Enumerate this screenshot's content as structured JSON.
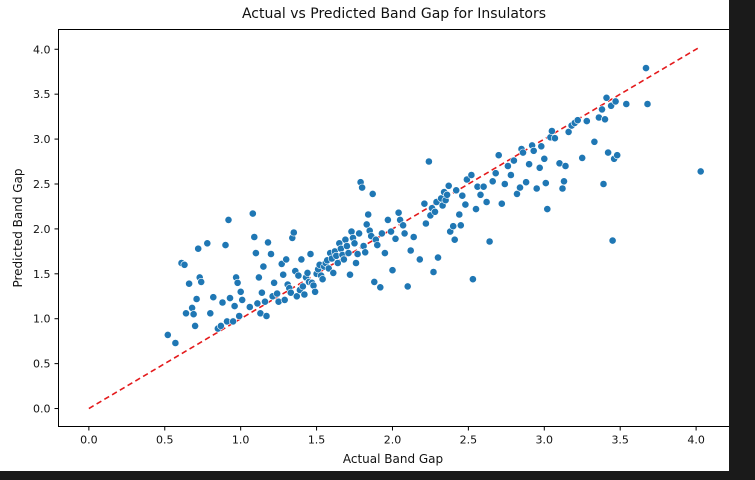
{
  "chart_data": {
    "type": "scatter",
    "title": "Actual vs Predicted Band Gap for Insulators",
    "xlabel": "Actual Band Gap",
    "ylabel": "Predicted Band Gap",
    "xlim": [
      -0.2,
      4.22
    ],
    "ylim": [
      -0.2,
      4.22
    ],
    "xticks": [
      "0.0",
      "0.5",
      "1.0",
      "1.5",
      "2.0",
      "2.5",
      "3.0",
      "3.5",
      "4.0"
    ],
    "yticks": [
      "0.0",
      "0.5",
      "1.0",
      "1.5",
      "2.0",
      "2.5",
      "3.0",
      "3.5",
      "4.0"
    ],
    "grid": false,
    "legend": "none",
    "point_color": "#1f77b4",
    "reference_line": {
      "from": [
        0,
        0
      ],
      "to": [
        4.03,
        4.03
      ],
      "color": "#e41a1c",
      "style": "dashed"
    },
    "points": [
      [
        0.52,
        0.82
      ],
      [
        0.57,
        0.73
      ],
      [
        0.61,
        1.62
      ],
      [
        0.63,
        1.6
      ],
      [
        0.64,
        1.06
      ],
      [
        0.66,
        1.39
      ],
      [
        0.68,
        1.12
      ],
      [
        0.69,
        1.05
      ],
      [
        0.7,
        0.92
      ],
      [
        0.71,
        1.22
      ],
      [
        0.72,
        1.78
      ],
      [
        0.73,
        1.46
      ],
      [
        0.74,
        1.41
      ],
      [
        0.78,
        1.84
      ],
      [
        0.8,
        1.06
      ],
      [
        0.82,
        1.24
      ],
      [
        0.85,
        0.89
      ],
      [
        0.87,
        0.92
      ],
      [
        0.88,
        1.18
      ],
      [
        0.9,
        1.82
      ],
      [
        0.91,
        0.97
      ],
      [
        0.92,
        2.1
      ],
      [
        0.93,
        1.23
      ],
      [
        0.95,
        0.97
      ],
      [
        0.96,
        1.14
      ],
      [
        0.97,
        1.46
      ],
      [
        0.98,
        1.4
      ],
      [
        0.99,
        1.03
      ],
      [
        1.0,
        1.3
      ],
      [
        1.01,
        1.21
      ],
      [
        1.06,
        1.13
      ],
      [
        1.08,
        2.17
      ],
      [
        1.09,
        1.91
      ],
      [
        1.1,
        1.73
      ],
      [
        1.11,
        1.17
      ],
      [
        1.12,
        1.46
      ],
      [
        1.13,
        1.06
      ],
      [
        1.14,
        1.29
      ],
      [
        1.15,
        1.58
      ],
      [
        1.16,
        1.19
      ],
      [
        1.17,
        1.03
      ],
      [
        1.18,
        1.85
      ],
      [
        1.2,
        1.72
      ],
      [
        1.21,
        1.25
      ],
      [
        1.22,
        1.4
      ],
      [
        1.24,
        1.28
      ],
      [
        1.25,
        1.19
      ],
      [
        1.27,
        1.61
      ],
      [
        1.28,
        1.49
      ],
      [
        1.29,
        1.21
      ],
      [
        1.3,
        1.66
      ],
      [
        1.31,
        1.38
      ],
      [
        1.32,
        1.34
      ],
      [
        1.33,
        1.29
      ],
      [
        1.34,
        1.9
      ],
      [
        1.35,
        1.96
      ],
      [
        1.36,
        1.53
      ],
      [
        1.37,
        1.25
      ],
      [
        1.38,
        1.48
      ],
      [
        1.39,
        1.32
      ],
      [
        1.4,
        1.66
      ],
      [
        1.41,
        1.36
      ],
      [
        1.42,
        1.27
      ],
      [
        1.43,
        1.46
      ],
      [
        1.44,
        1.51
      ],
      [
        1.45,
        1.41
      ],
      [
        1.46,
        1.72
      ],
      [
        1.47,
        1.4
      ],
      [
        1.48,
        1.37
      ],
      [
        1.49,
        1.3
      ],
      [
        1.5,
        1.5
      ],
      [
        1.51,
        1.55
      ],
      [
        1.52,
        1.6
      ],
      [
        1.53,
        1.48
      ],
      [
        1.54,
        1.44
      ],
      [
        1.55,
        1.58
      ],
      [
        1.56,
        1.62
      ],
      [
        1.57,
        1.65
      ],
      [
        1.58,
        1.56
      ],
      [
        1.59,
        1.73
      ],
      [
        1.6,
        1.67
      ],
      [
        1.61,
        1.51
      ],
      [
        1.62,
        1.75
      ],
      [
        1.63,
        1.7
      ],
      [
        1.64,
        1.62
      ],
      [
        1.65,
        1.84
      ],
      [
        1.66,
        1.78
      ],
      [
        1.67,
        1.71
      ],
      [
        1.68,
        1.66
      ],
      [
        1.69,
        1.88
      ],
      [
        1.7,
        1.81
      ],
      [
        1.71,
        1.73
      ],
      [
        1.72,
        1.49
      ],
      [
        1.73,
        1.97
      ],
      [
        1.74,
        1.9
      ],
      [
        1.75,
        1.84
      ],
      [
        1.76,
        1.62
      ],
      [
        1.77,
        1.72
      ],
      [
        1.78,
        1.95
      ],
      [
        1.79,
        2.52
      ],
      [
        1.8,
        2.46
      ],
      [
        1.81,
        1.81
      ],
      [
        1.82,
        1.74
      ],
      [
        1.83,
        2.05
      ],
      [
        1.84,
        2.16
      ],
      [
        1.85,
        1.98
      ],
      [
        1.86,
        1.92
      ],
      [
        1.87,
        2.39
      ],
      [
        1.88,
        1.41
      ],
      [
        1.89,
        1.88
      ],
      [
        1.9,
        1.82
      ],
      [
        1.92,
        1.35
      ],
      [
        1.93,
        1.95
      ],
      [
        1.95,
        1.73
      ],
      [
        1.97,
        2.1
      ],
      [
        1.99,
        1.97
      ],
      [
        2.0,
        1.54
      ],
      [
        2.02,
        1.89
      ],
      [
        2.04,
        2.18
      ],
      [
        2.05,
        2.1
      ],
      [
        2.07,
        2.04
      ],
      [
        2.08,
        1.95
      ],
      [
        2.1,
        1.36
      ],
      [
        2.12,
        1.76
      ],
      [
        2.14,
        1.91
      ],
      [
        2.18,
        1.66
      ],
      [
        2.21,
        2.28
      ],
      [
        2.22,
        2.06
      ],
      [
        2.24,
        2.75
      ],
      [
        2.25,
        2.15
      ],
      [
        2.26,
        2.23
      ],
      [
        2.27,
        1.52
      ],
      [
        2.28,
        2.19
      ],
      [
        2.29,
        2.3
      ],
      [
        2.3,
        1.68
      ],
      [
        2.32,
        2.34
      ],
      [
        2.33,
        2.26
      ],
      [
        2.34,
        2.41
      ],
      [
        2.35,
        2.32
      ],
      [
        2.36,
        2.38
      ],
      [
        2.37,
        2.48
      ],
      [
        2.38,
        1.97
      ],
      [
        2.4,
        2.03
      ],
      [
        2.41,
        1.88
      ],
      [
        2.42,
        2.43
      ],
      [
        2.44,
        2.16
      ],
      [
        2.45,
        2.04
      ],
      [
        2.46,
        2.37
      ],
      [
        2.48,
        2.27
      ],
      [
        2.49,
        2.55
      ],
      [
        2.52,
        2.6
      ],
      [
        2.53,
        1.44
      ],
      [
        2.55,
        2.22
      ],
      [
        2.56,
        2.47
      ],
      [
        2.58,
        2.38
      ],
      [
        2.6,
        2.47
      ],
      [
        2.62,
        2.3
      ],
      [
        2.64,
        1.86
      ],
      [
        2.66,
        2.53
      ],
      [
        2.68,
        2.62
      ],
      [
        2.7,
        2.82
      ],
      [
        2.72,
        2.28
      ],
      [
        2.74,
        2.5
      ],
      [
        2.76,
        2.7
      ],
      [
        2.78,
        2.6
      ],
      [
        2.8,
        2.76
      ],
      [
        2.82,
        2.39
      ],
      [
        2.84,
        2.46
      ],
      [
        2.85,
        2.89
      ],
      [
        2.86,
        2.85
      ],
      [
        2.88,
        2.52
      ],
      [
        2.9,
        2.72
      ],
      [
        2.92,
        2.93
      ],
      [
        2.93,
        2.87
      ],
      [
        2.95,
        2.45
      ],
      [
        2.97,
        2.68
      ],
      [
        2.98,
        2.92
      ],
      [
        3.0,
        2.78
      ],
      [
        3.01,
        2.51
      ],
      [
        3.02,
        2.22
      ],
      [
        3.04,
        3.02
      ],
      [
        3.05,
        3.09
      ],
      [
        3.07,
        3.01
      ],
      [
        3.1,
        2.73
      ],
      [
        3.12,
        2.45
      ],
      [
        3.13,
        2.53
      ],
      [
        3.14,
        2.7
      ],
      [
        3.16,
        3.08
      ],
      [
        3.18,
        3.15
      ],
      [
        3.2,
        3.18
      ],
      [
        3.22,
        3.21
      ],
      [
        3.25,
        2.79
      ],
      [
        3.28,
        3.2
      ],
      [
        3.33,
        2.97
      ],
      [
        3.36,
        3.24
      ],
      [
        3.38,
        3.33
      ],
      [
        3.39,
        2.5
      ],
      [
        3.4,
        3.22
      ],
      [
        3.41,
        3.46
      ],
      [
        3.42,
        2.85
      ],
      [
        3.44,
        3.37
      ],
      [
        3.45,
        1.87
      ],
      [
        3.46,
        2.78
      ],
      [
        3.47,
        3.42
      ],
      [
        3.48,
        2.82
      ],
      [
        3.54,
        3.39
      ],
      [
        3.67,
        3.79
      ],
      [
        3.68,
        3.39
      ],
      [
        4.03,
        2.64
      ]
    ]
  }
}
